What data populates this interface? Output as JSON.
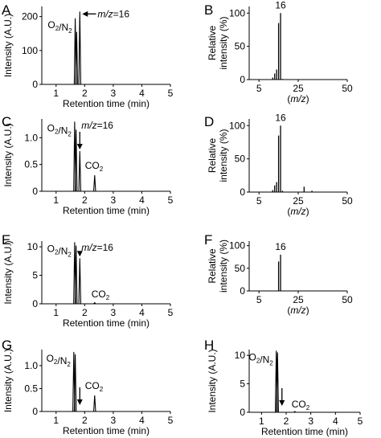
{
  "chart_data": [
    {
      "panel": "A",
      "type": "line",
      "xlabel": "Retention time (min)",
      "ylabel": "Intensity (A.U.)",
      "xlim": [
        0.5,
        5
      ],
      "ylim": [
        0,
        230
      ],
      "xticks": [
        "1",
        "2",
        "3",
        "4",
        "5"
      ],
      "yticks": [
        "0",
        "100",
        "200"
      ],
      "peaks": [
        {
          "x": 1.67,
          "y": 195,
          "label": "O2/N2"
        },
        {
          "x": 1.72,
          "y": 155
        },
        {
          "x": 1.83,
          "y": 215,
          "label": "m/z=16"
        }
      ],
      "annotations": {
        "o2n2": "O2/N2",
        "mz": "m/z=16"
      }
    },
    {
      "panel": "B",
      "type": "bar",
      "xlabel": "(m/z)",
      "ylabel": "Relative intensity (%)",
      "xlim": [
        0,
        50
      ],
      "ylim": [
        0,
        110
      ],
      "xticks": [
        "5",
        "25",
        "50"
      ],
      "yticks": [
        "0",
        "50",
        "100"
      ],
      "peaks": [
        {
          "x": 12,
          "y": 3
        },
        {
          "x": 13,
          "y": 9
        },
        {
          "x": 14,
          "y": 15
        },
        {
          "x": 15,
          "y": 85
        },
        {
          "x": 16,
          "y": 100
        },
        {
          "x": 17,
          "y": 1
        }
      ],
      "annotations": {
        "peak": "16"
      }
    },
    {
      "panel": "C",
      "type": "line",
      "xlabel": "Retention time (min)",
      "ylabel": "Intensity (A.U.)",
      "xlim": [
        0.5,
        5
      ],
      "ylim": [
        0,
        1.35
      ],
      "xticks": [
        "1",
        "2",
        "3",
        "4",
        "5"
      ],
      "yticks": [
        "0",
        "0.5",
        "1.0"
      ],
      "peaks": [
        {
          "x": 1.65,
          "y": 1.3
        },
        {
          "x": 1.7,
          "y": 1.15
        },
        {
          "x": 1.83,
          "y": 0.75
        },
        {
          "x": 2.35,
          "y": 0.3
        }
      ],
      "annotations": {
        "o2n2": "O2/N2",
        "mz": "m/z=16",
        "co2": "CO2"
      }
    },
    {
      "panel": "D",
      "type": "bar",
      "xlabel": "(m/z)",
      "ylabel": "Relative intensity (%)",
      "xlim": [
        0,
        50
      ],
      "ylim": [
        0,
        110
      ],
      "xticks": [
        "5",
        "25",
        "50"
      ],
      "yticks": [
        "0",
        "50",
        "100"
      ],
      "peaks": [
        {
          "x": 12,
          "y": 3
        },
        {
          "x": 13,
          "y": 10
        },
        {
          "x": 14,
          "y": 15
        },
        {
          "x": 15,
          "y": 85
        },
        {
          "x": 16,
          "y": 100
        },
        {
          "x": 17,
          "y": 2
        },
        {
          "x": 28,
          "y": 8
        },
        {
          "x": 32,
          "y": 2
        }
      ],
      "annotations": {
        "peak": "16"
      }
    },
    {
      "panel": "E",
      "type": "line",
      "xlabel": "Retention time (min)",
      "ylabel": "Intensity (A.U.)",
      "xlim": [
        0.5,
        5
      ],
      "ylim": [
        0,
        11
      ],
      "xticks": [
        "1",
        "2",
        "3",
        "4",
        "5"
      ],
      "yticks": [
        "0",
        "5",
        "10"
      ],
      "peaks": [
        {
          "x": 1.65,
          "y": 10.8
        },
        {
          "x": 1.7,
          "y": 10.2
        },
        {
          "x": 1.83,
          "y": 8.0
        },
        {
          "x": 2.35,
          "y": 0.2
        }
      ],
      "annotations": {
        "o2n2": "O2/N2",
        "mz": "m/z=16",
        "co2": "CO2"
      }
    },
    {
      "panel": "F",
      "type": "bar",
      "xlabel": "(m/z)",
      "ylabel": "Relative intensity (%)",
      "xlim": [
        0,
        50
      ],
      "ylim": [
        0,
        110
      ],
      "xticks": [
        "5",
        "25",
        "50"
      ],
      "yticks": [
        "0",
        "50",
        "100"
      ],
      "peaks": [
        {
          "x": 15,
          "y": 65
        },
        {
          "x": 16,
          "y": 80
        }
      ],
      "annotations": {
        "peak": "16"
      }
    },
    {
      "panel": "G",
      "type": "line",
      "xlabel": "Retention time (min)",
      "ylabel": "Intensity (A.U.)",
      "xlim": [
        0.5,
        5
      ],
      "ylim": [
        0,
        1.35
      ],
      "xticks": [
        "1",
        "2",
        "3",
        "4",
        "5"
      ],
      "yticks": [
        "0",
        "0.5",
        "1.0"
      ],
      "peaks": [
        {
          "x": 1.62,
          "y": 1.3
        },
        {
          "x": 1.67,
          "y": 1.25
        },
        {
          "x": 2.35,
          "y": 0.35
        }
      ],
      "annotations": {
        "o2n2": "O2/N2",
        "co2": "CO2"
      }
    },
    {
      "panel": "H",
      "type": "line",
      "xlabel": "Retention time (min)",
      "ylabel": "Intensity (A.U.)",
      "xlim": [
        0.5,
        5
      ],
      "ylim": [
        0,
        11
      ],
      "xticks": [
        "1",
        "2",
        "3",
        "4",
        "5"
      ],
      "yticks": [
        "0",
        "5",
        "10"
      ],
      "peaks": [
        {
          "x": 1.6,
          "y": 10.8
        },
        {
          "x": 1.65,
          "y": 10.5
        },
        {
          "x": 2.35,
          "y": 0.15
        }
      ],
      "annotations": {
        "o2n2": "O2/N2",
        "co2": "CO2"
      }
    }
  ],
  "colors": {
    "axis": "#000000",
    "trace": "#000000",
    "background": "#ffffff"
  }
}
